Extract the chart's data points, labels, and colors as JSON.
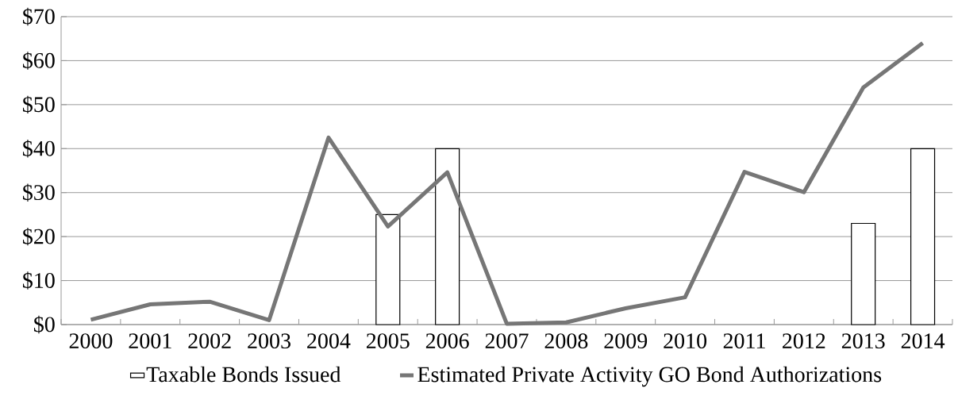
{
  "chart_data": {
    "type": "bar",
    "categories": [
      "2000",
      "2001",
      "2002",
      "2003",
      "2004",
      "2005",
      "2006",
      "2007",
      "2008",
      "2009",
      "2010",
      "2011",
      "2012",
      "2013",
      "2014"
    ],
    "series": [
      {
        "name": "Taxable Bonds Issued",
        "color": "#ffffff",
        "values": [
          null,
          null,
          null,
          null,
          null,
          25,
          40,
          null,
          null,
          null,
          null,
          null,
          null,
          23,
          40
        ]
      },
      {
        "name": "Estimated Private Activity GO Bond Authorizations",
        "type": "line",
        "color": "#767676",
        "values": [
          1.1,
          4.6,
          5.2,
          1.0,
          42.5,
          22.3,
          34.6,
          0.2,
          0.5,
          3.7,
          6.2,
          34.7,
          30.1,
          53.9,
          64.0
        ]
      }
    ],
    "ylim": [
      0,
      70
    ],
    "yticks": [
      {
        "value": 0,
        "label": "$0"
      },
      {
        "value": 10,
        "label": "$10"
      },
      {
        "value": 20,
        "label": "$20"
      },
      {
        "value": 30,
        "label": "$30"
      },
      {
        "value": 40,
        "label": "$40"
      },
      {
        "value": 50,
        "label": "$50"
      },
      {
        "value": 60,
        "label": "$60"
      },
      {
        "value": 70,
        "label": "$70"
      }
    ],
    "grid": "y",
    "legend": "bottom"
  }
}
